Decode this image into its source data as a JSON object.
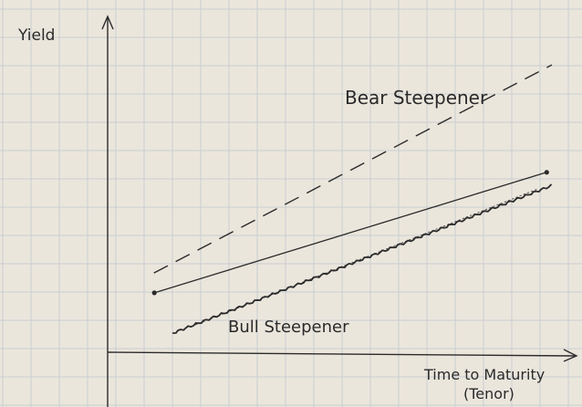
{
  "chart_data": {
    "type": "line",
    "xlabel": "Time to Maturity",
    "xlabel_sub": "(Tenor)",
    "ylabel": "Yield",
    "xlim": [
      0,
      100
    ],
    "ylim": [
      0,
      100
    ],
    "grid": true,
    "axis_ticks": false,
    "annotations": [
      {
        "text": "Bear Steepener",
        "near_series": "bear"
      },
      {
        "text": "Bull Steepener",
        "near_series": "bull"
      }
    ],
    "series": [
      {
        "id": "bear",
        "style": "dashed",
        "color": "#2b2b2b",
        "x": [
          10,
          95
        ],
        "y": [
          24,
          86
        ]
      },
      {
        "id": "base",
        "style": "solid",
        "color": "#2b2b2b",
        "x": [
          10,
          94
        ],
        "y": [
          18,
          54
        ],
        "endpoints": true
      },
      {
        "id": "bull_dotted",
        "style": "dotted",
        "color": "#555555",
        "x": [
          18,
          92
        ],
        "y": [
          8,
          49
        ]
      },
      {
        "id": "bull",
        "style": "wavy",
        "color": "#2b2b2b",
        "x": [
          14,
          95
        ],
        "y": [
          6,
          50
        ]
      }
    ]
  },
  "colors": {
    "paper": "#ebe6dc",
    "grid": "#c9cdd2",
    "ink": "#2b2b2b"
  }
}
